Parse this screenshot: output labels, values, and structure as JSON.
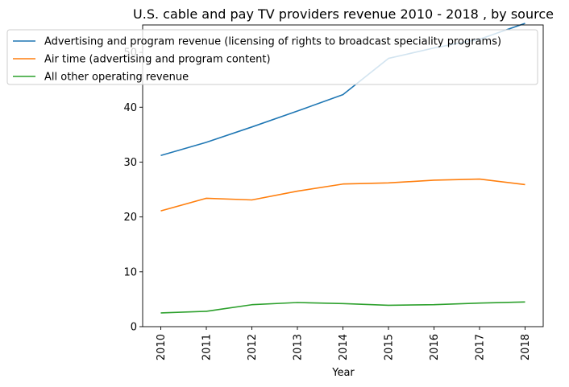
{
  "chart_data": {
    "type": "line",
    "title": "U.S. cable and pay TV providers revenue 2010 - 2018 , by source",
    "xlabel": "Year",
    "ylabel": "",
    "x": [
      "2010",
      "2011",
      "2012",
      "2013",
      "2014",
      "2015",
      "2016",
      "2017",
      "2018"
    ],
    "ylim": [
      0,
      55
    ],
    "yticks": [
      0,
      10,
      20,
      30,
      40,
      50
    ],
    "grid": false,
    "legend_position": "top-left",
    "series": [
      {
        "name": "Advertising and program revenue (licensing of rights to broadcast speciality programs)",
        "color": "#1f77b4",
        "values": [
          31.2,
          33.6,
          36.4,
          39.3,
          42.3,
          48.9,
          50.8,
          52.4,
          55.3
        ]
      },
      {
        "name": "Air time (advertising and program content)",
        "color": "#ff7f0e",
        "values": [
          21.1,
          23.4,
          23.1,
          24.7,
          26.0,
          26.2,
          26.7,
          26.9,
          25.9
        ]
      },
      {
        "name": "All other operating revenue",
        "color": "#2ca02c",
        "values": [
          2.5,
          2.8,
          4.0,
          4.4,
          4.2,
          3.9,
          4.0,
          4.3,
          4.5
        ]
      }
    ]
  }
}
